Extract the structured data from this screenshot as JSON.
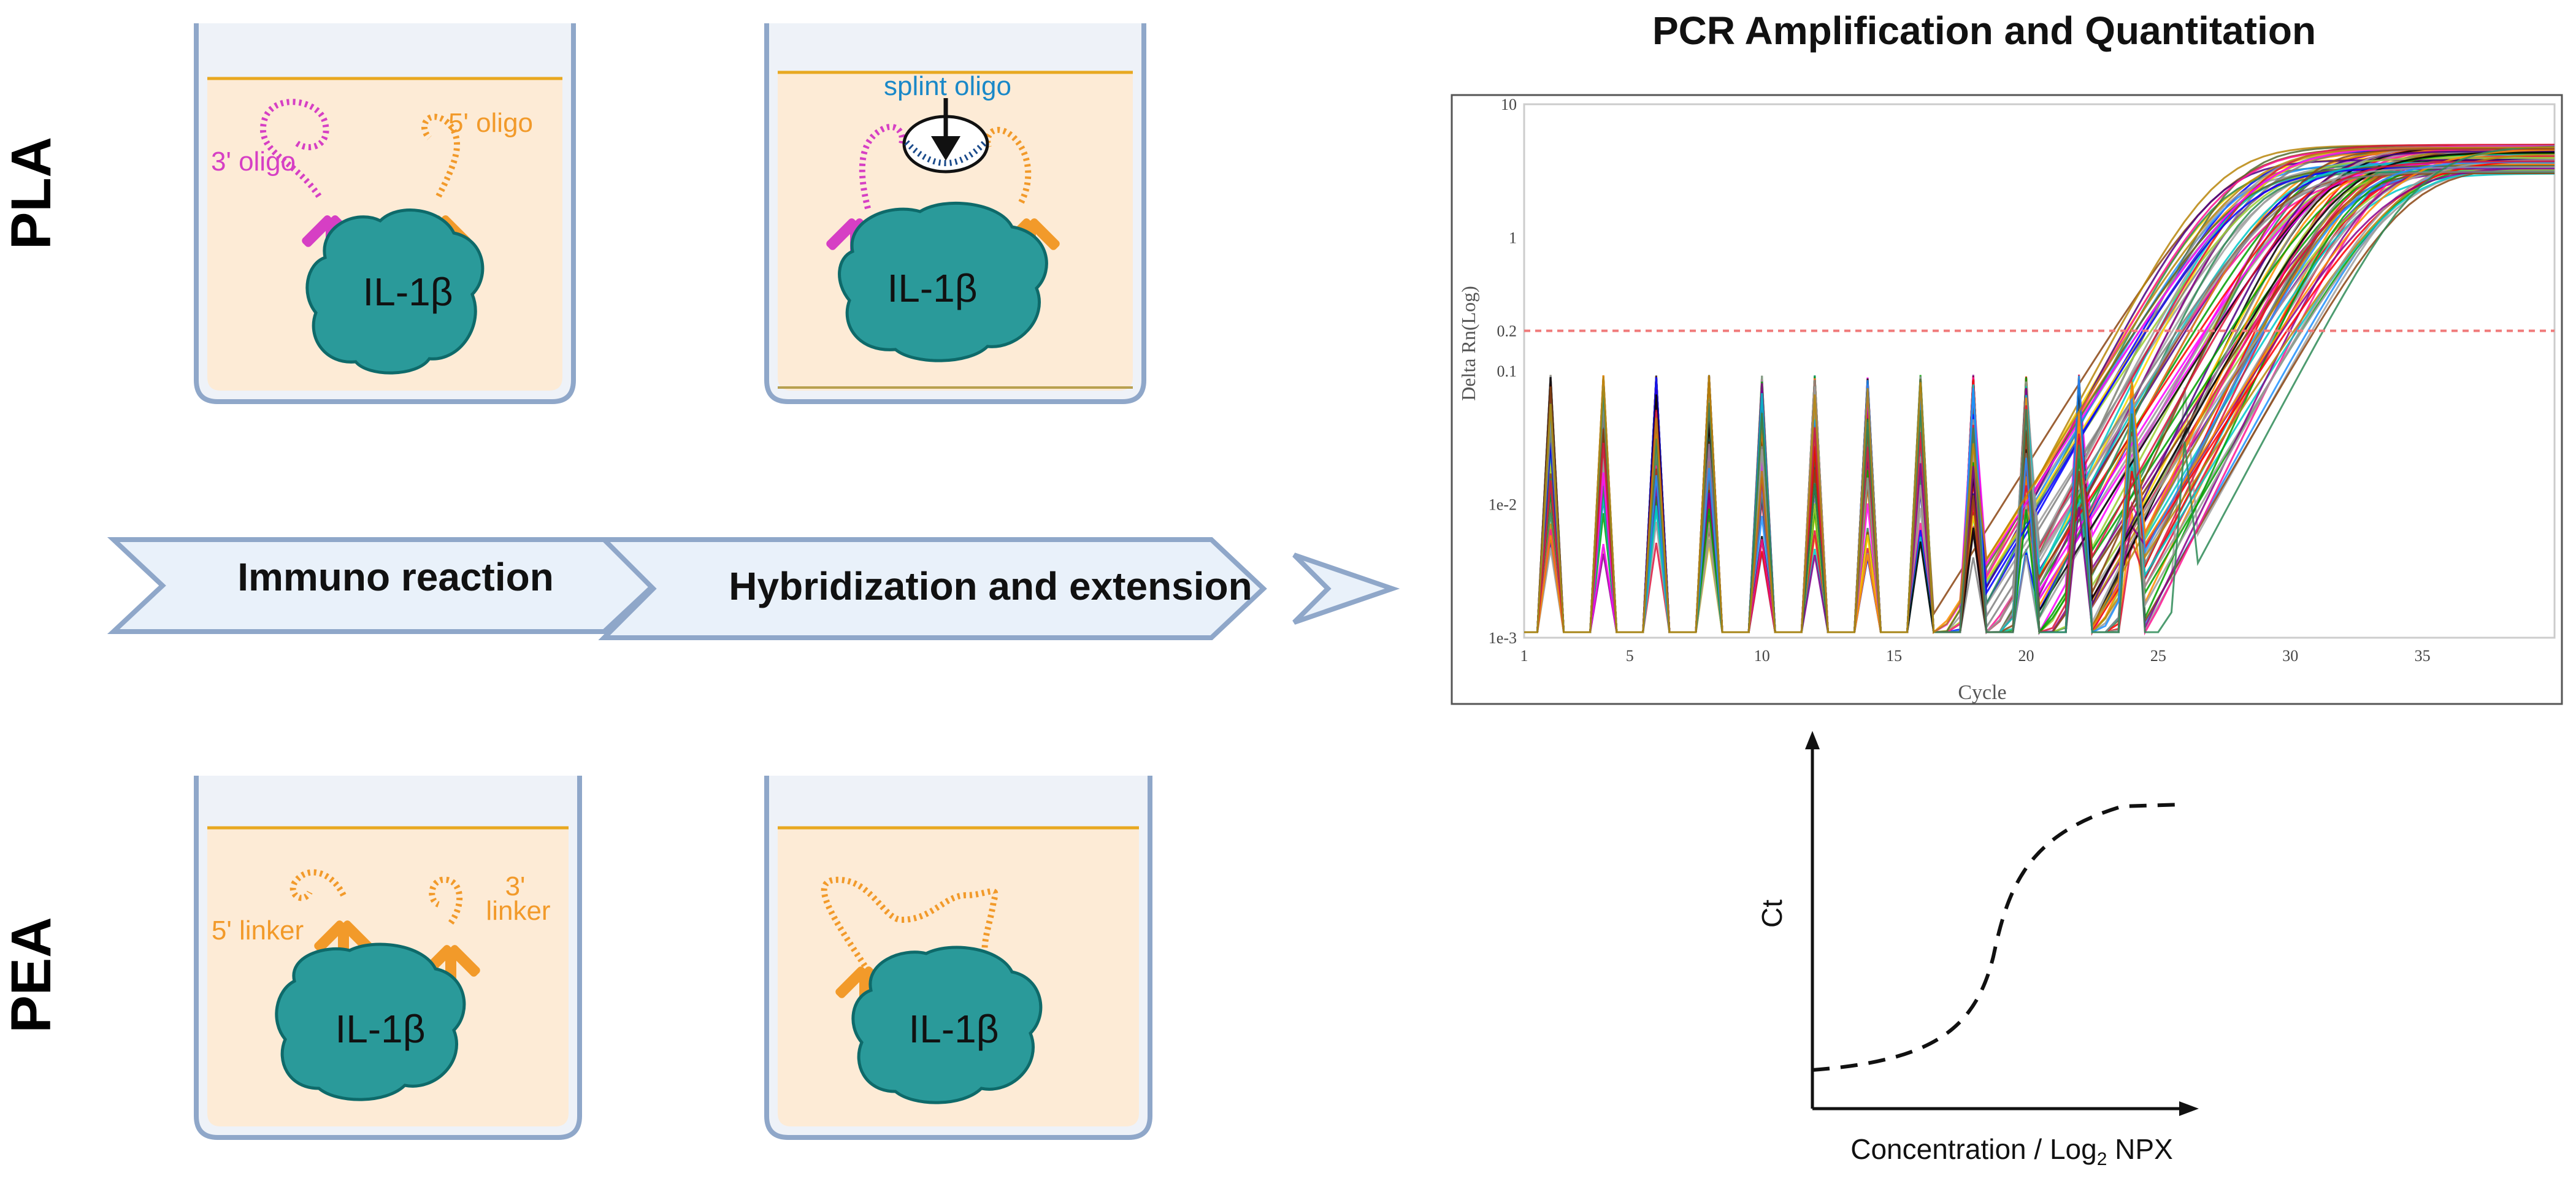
{
  "rows": {
    "pla": "PLA",
    "pea": "PEA"
  },
  "arrows": {
    "step1": "Immuno reaction",
    "step2": "Hybridization and extension"
  },
  "pla_panels": {
    "immuno": {
      "protein": "IL-1β",
      "oligo_3": "3' oligo",
      "oligo_5": "5' oligo"
    },
    "hybrid": {
      "protein": "IL-1β",
      "splint": "splint oligo"
    }
  },
  "pea_panels": {
    "immuno": {
      "protein": "IL-1β",
      "linker_5": "5' linker",
      "linker_3_line1": "3'",
      "linker_3_line2": "linker"
    },
    "hybrid": {
      "protein": "IL-1β"
    }
  },
  "pcr_title": "PCR Amplification and Quantitation",
  "colors": {
    "protein": "#2a9a9a",
    "protein_edge": "#0e6a6a",
    "magenta": "#d63fc4",
    "orange": "#f29a2a",
    "blue": "#1a88c8",
    "well_fill": "#fdebd6",
    "well_edge": "#8fa7c9",
    "arrow_fill": "#e9f1fa",
    "threshold": "#f07a7a"
  },
  "chart_data": [
    {
      "type": "line",
      "title": "PCR Amplification and Quantitation",
      "xlabel": "Cycle",
      "ylabel": "Delta Rn(Log)",
      "yscale": "log",
      "xlim": [
        1,
        40
      ],
      "ylim": [
        0.001,
        10
      ],
      "x_ticks": [
        "1",
        "5",
        "10",
        "15",
        "20",
        "25",
        "30",
        "35"
      ],
      "y_ticks": [
        "10",
        "1",
        "0.2",
        "0.1",
        "1e-2",
        "1e-3"
      ],
      "threshold": 0.2,
      "ct_range": [
        23,
        31
      ],
      "plateau": [
        3,
        5
      ],
      "series_count": 96
    },
    {
      "type": "line",
      "style": "dashed sigmoid",
      "xlabel": "Concentration / Log₂ NPX",
      "ylabel": "Ct"
    }
  ],
  "std_xlabel_main": "Concentration / Log",
  "std_xlabel_sub": "2",
  "std_xlabel_tail": " NPX"
}
